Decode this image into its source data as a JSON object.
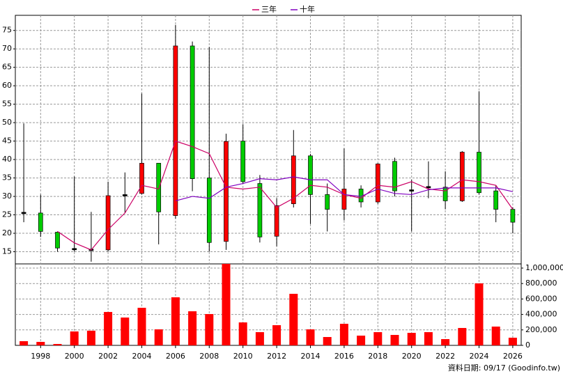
{
  "chart_data": [
    {
      "type": "candlestick",
      "x": [
        1997,
        1998,
        1999,
        2000,
        2001,
        2002,
        2003,
        2004,
        2005,
        2006,
        2007,
        2008,
        2009,
        2010,
        2011,
        2012,
        2013,
        2014,
        2015,
        2016,
        2017,
        2018,
        2019,
        2020,
        2021,
        2022,
        2023,
        2024,
        2025,
        2026
      ],
      "open": [
        25.5,
        25.5,
        20.3,
        15.7,
        15.5,
        15.5,
        30.3,
        30.8,
        39,
        24.8,
        70.8,
        35,
        17.8,
        45,
        33.5,
        19.2,
        28,
        41,
        30.5,
        26.5,
        32,
        28.5,
        39.5,
        31.6,
        32.5,
        32.5,
        28.8,
        42,
        31.5,
        26.5
      ],
      "high": [
        49.8,
        30.5,
        20.5,
        35.4,
        25.8,
        34,
        36.5,
        57.9,
        39,
        76.5,
        72,
        70.5,
        47,
        49.5,
        35.8,
        29.5,
        48,
        41.5,
        33.5,
        43,
        33,
        39,
        40.5,
        34.5,
        39.5,
        36.8,
        42.3,
        58.5,
        33,
        27
      ],
      "low": [
        23,
        19,
        15,
        15,
        12.3,
        15,
        25.5,
        30.5,
        17,
        24,
        31.4,
        15,
        15.5,
        33.5,
        17.5,
        16.5,
        27,
        22.5,
        20.5,
        23.5,
        27,
        28,
        30,
        20.5,
        29.5,
        26.5,
        28.5,
        30.5,
        23,
        20
      ],
      "close": [
        25.5,
        20.5,
        16,
        15.7,
        15.5,
        30.2,
        30.3,
        39,
        25.8,
        70.8,
        34.8,
        17.5,
        44.9,
        34,
        19,
        27.5,
        41,
        30.5,
        26.5,
        32,
        28.5,
        38.8,
        31.5,
        31.6,
        32.5,
        28.8,
        42,
        31,
        26.5,
        23
      ],
      "up_color": "#ff0000",
      "down_color": "#00cc00",
      "series": [
        {
          "name": "三年",
          "color": "#cc0066",
          "values": [
            null,
            null,
            20.5,
            17.4,
            15.5,
            21,
            25.5,
            33,
            32,
            45,
            43.5,
            41.6,
            32.5,
            32,
            32.5,
            27,
            29.5,
            33,
            32.5,
            30.5,
            29.5,
            33,
            32.5,
            34,
            32,
            31.5,
            34.5,
            34,
            33,
            26.5
          ]
        },
        {
          "name": "十年",
          "color": "#8000c0",
          "values": [
            null,
            null,
            null,
            null,
            null,
            null,
            null,
            null,
            null,
            28.8,
            30,
            29.5,
            32.5,
            33.5,
            34.8,
            34.5,
            35.3,
            34.5,
            34.5,
            30.5,
            30,
            32,
            30.8,
            30.5,
            31.8,
            32.3,
            32.3,
            32.3,
            32.3,
            31.3
          ]
        }
      ],
      "xlim": [
        1996.5,
        2026.5
      ],
      "xticks": [
        1998,
        2000,
        2002,
        2004,
        2006,
        2008,
        2010,
        2012,
        2014,
        2016,
        2018,
        2020,
        2022,
        2024,
        2026
      ],
      "ylim": [
        11.7,
        79.1
      ],
      "yticks": [
        15,
        20,
        25,
        30,
        35,
        40,
        45,
        50,
        55,
        60,
        65,
        70,
        75
      ],
      "grid": true,
      "annotation": "資料日期: 09/17 (Goodinfo.tw)"
    },
    {
      "type": "bar",
      "x": [
        1997,
        1998,
        1999,
        2000,
        2001,
        2002,
        2003,
        2004,
        2005,
        2006,
        2007,
        2008,
        2009,
        2010,
        2011,
        2012,
        2013,
        2014,
        2015,
        2016,
        2017,
        2018,
        2019,
        2020,
        2021,
        2022,
        2023,
        2024,
        2025,
        2026
      ],
      "values": [
        54000,
        45000,
        18000,
        180000,
        190000,
        432000,
        360000,
        486000,
        207000,
        622000,
        441000,
        405000,
        1054000,
        297000,
        171000,
        261000,
        667000,
        207000,
        108000,
        279000,
        126000,
        171000,
        135000,
        162000,
        171000,
        81000,
        225000,
        802000,
        243000,
        99000
      ],
      "color": "#ff0000",
      "xlim": [
        1996.5,
        2026.5
      ],
      "ylim": [
        0,
        1054000
      ],
      "yticks": [
        0,
        {
          "value": 200000,
          "label": "200,000"
        },
        {
          "value": 400000,
          "label": "400,000"
        },
        {
          "value": 600000,
          "label": "600,000"
        },
        {
          "value": 800000,
          "label": "800,000"
        },
        {
          "value": 1000000,
          "label": "1,000,000"
        }
      ],
      "grid": true
    }
  ]
}
